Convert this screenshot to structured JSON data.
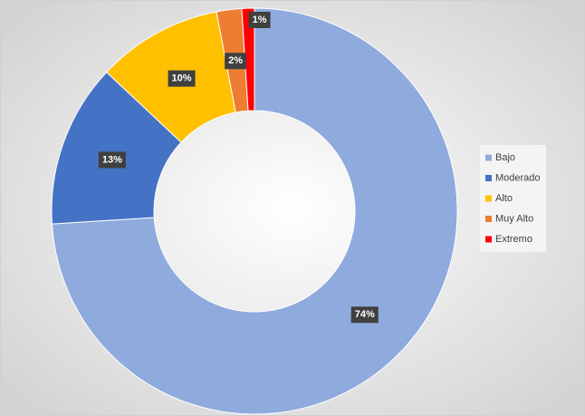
{
  "chart_data": {
    "type": "doughnut",
    "categories": [
      "Bajo",
      "Moderado",
      "Alto",
      "Muy Alto",
      "Extremo"
    ],
    "values": [
      74,
      13,
      10,
      2,
      1
    ],
    "value_labels": [
      "74%",
      "13%",
      "10%",
      "2%",
      "1%"
    ],
    "colors": [
      "#8faadc",
      "#4472c4",
      "#ffc000",
      "#ed7d31",
      "#ff0000"
    ],
    "legend": "right"
  }
}
